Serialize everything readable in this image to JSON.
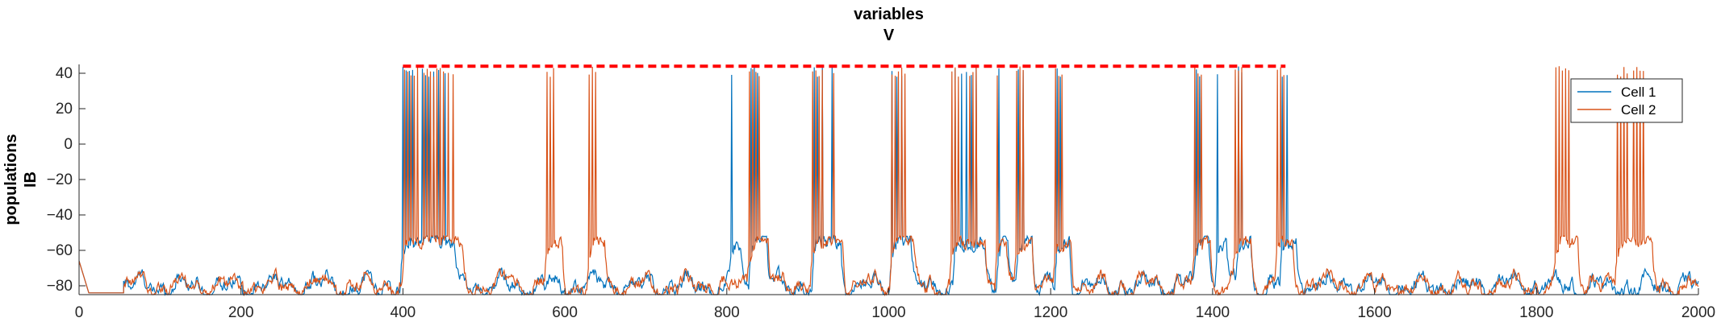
{
  "chart_data": {
    "type": "line",
    "title": [
      "variables",
      "V"
    ],
    "ylabel": [
      "populations",
      "IB"
    ],
    "xlim": [
      0,
      2000
    ],
    "ylim": [
      -85,
      45
    ],
    "xticks": [
      0,
      200,
      400,
      600,
      800,
      1000,
      1200,
      1400,
      1600,
      1800,
      2000
    ],
    "yticks": [
      40,
      20,
      0,
      -20,
      -40,
      -60,
      -80
    ],
    "grid": false,
    "legend": {
      "placement": "top-right",
      "entries": [
        "Cell 1",
        "Cell 2"
      ]
    },
    "colors": {
      "cell1": "#0072BD",
      "cell2": "#D95319",
      "spike_marker": "#FF0000"
    },
    "series": [
      {
        "name": "Cell 1",
        "baseline": -80,
        "spikes": [
          400,
          404,
          408,
          412,
          424,
          428,
          432,
          438,
          444,
          452,
          806,
          830,
          834,
          838,
          908,
          912,
          918,
          930,
          1004,
          1010,
          1016,
          1082,
          1090,
          1096,
          1102,
          1108,
          1136,
          1160,
          1166,
          1208,
          1212,
          1380,
          1384,
          1406,
          1432,
          1436,
          1486,
          1492
        ]
      },
      {
        "name": "Cell 2",
        "baseline": -80,
        "spikes": [
          402,
          406,
          410,
          414,
          418,
          426,
          430,
          434,
          438,
          442,
          446,
          450,
          456,
          462,
          578,
          582,
          586,
          630,
          634,
          638,
          828,
          832,
          836,
          840,
          906,
          910,
          914,
          918,
          932,
          1004,
          1008,
          1012,
          1016,
          1020,
          1078,
          1082,
          1086,
          1100,
          1104,
          1108,
          1134,
          1158,
          1162,
          1166,
          1206,
          1210,
          1214,
          1378,
          1382,
          1386,
          1428,
          1432,
          1436,
          1480,
          1484,
          1488,
          1824,
          1828,
          1832,
          1836,
          1840,
          1900,
          1904,
          1908,
          1912,
          1920,
          1924,
          1928,
          1932
        ]
      }
    ],
    "marker_line": {
      "y": 44,
      "x": [
        400,
        1490
      ]
    }
  }
}
